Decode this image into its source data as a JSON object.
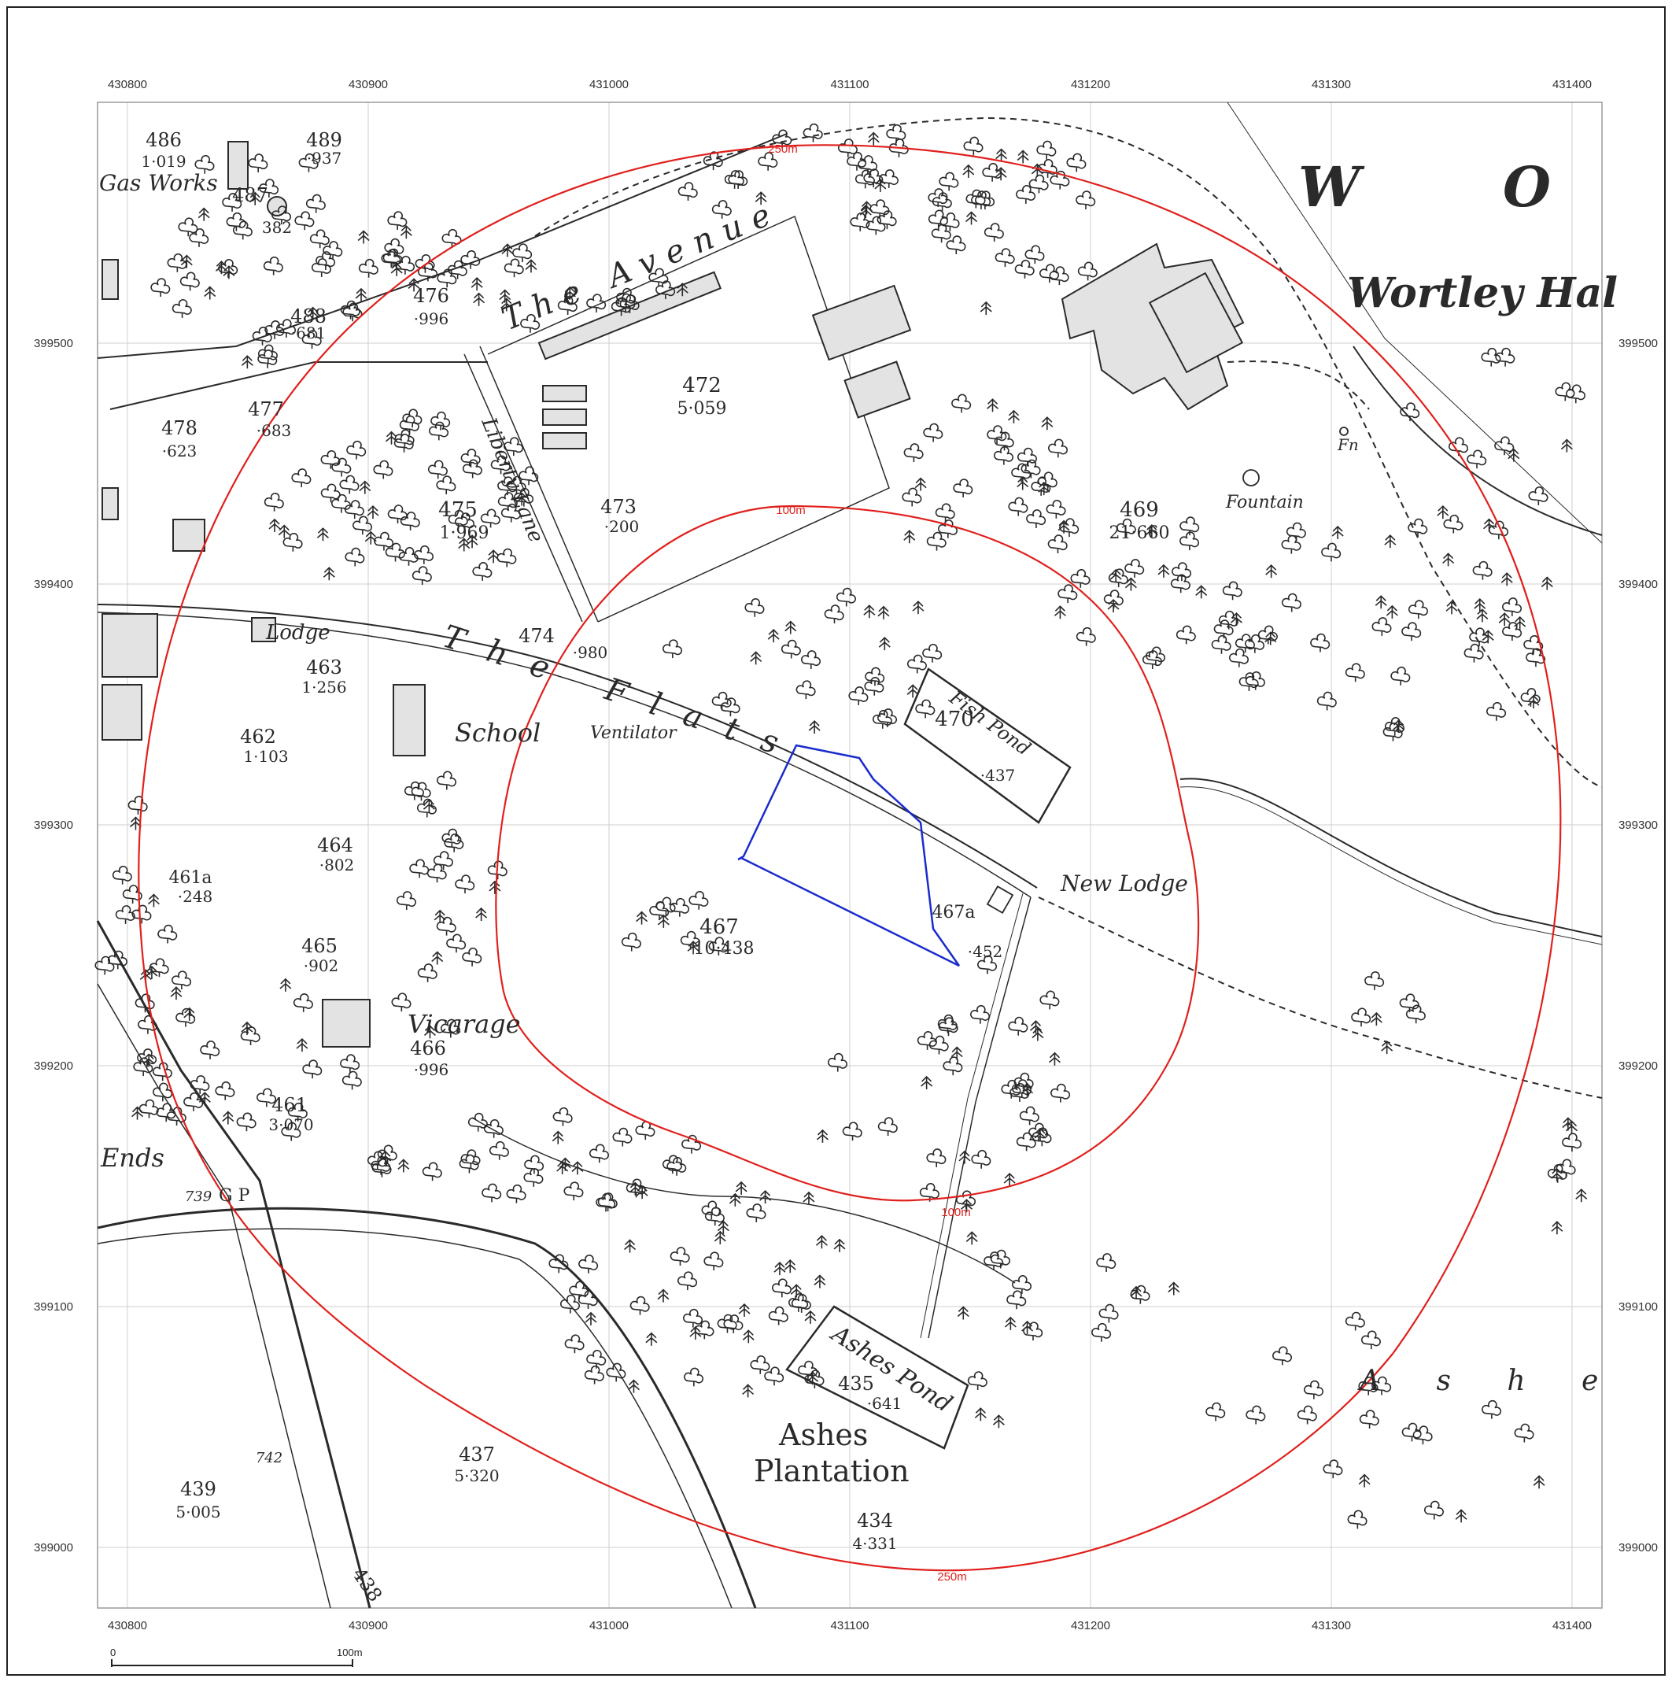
{
  "grid": {
    "x_labels": [
      "430800",
      "430900",
      "431000",
      "431100",
      "431200",
      "431300",
      "431400"
    ],
    "y_labels": [
      "399500",
      "399400",
      "399300",
      "399200",
      "399100",
      "399000"
    ]
  },
  "scale_bar": {
    "start": "0",
    "end": "100m"
  },
  "buffers": {
    "inner": "100m",
    "outer": "250m"
  },
  "colors": {
    "buffer": "#e0201c",
    "site": "#1a2ccc",
    "grid": "#cfcfcf",
    "ink": "#2a2a2a"
  },
  "places": {
    "gas_works": "Gas Works",
    "wortley_w": "W",
    "wortley_o": "O",
    "wortley_hall": "Wortley Hal",
    "the_avenue": "The Avenue",
    "liberty_lane": "Liberty Lane",
    "the_flats": "The Flats",
    "lodge": "Lodge",
    "school": "School",
    "ventilator": "Ventilator",
    "fish_pond": "Fish Pond",
    "fountain": "Fountain",
    "fn": "Fn",
    "new_lodge": "New Lodge",
    "vicarage": "Vicarage",
    "ends": "Ends",
    "gp": "G P",
    "ashes_pond": "Ashes Pond",
    "ashes_plantation_1": "Ashes",
    "ashes_plantation_2": "Plantation",
    "ashes_spaced": "A  s  h  e"
  },
  "parcels": [
    {
      "num": "486",
      "area": "1·019"
    },
    {
      "num": "489",
      "area": "·937"
    },
    {
      "num": "487",
      "area": ""
    },
    {
      "num": "382",
      "area": ""
    },
    {
      "num": "476",
      "area": "·996"
    },
    {
      "num": "488",
      "area": "·681"
    },
    {
      "num": "478",
      "area": "·623"
    },
    {
      "num": "477",
      "area": "·683"
    },
    {
      "num": "472",
      "area": "5·059"
    },
    {
      "num": "475",
      "area": "1·969"
    },
    {
      "num": "473",
      "area": "·200"
    },
    {
      "num": "469",
      "area": "21·660"
    },
    {
      "num": "474",
      "area": "·980"
    },
    {
      "num": "463",
      "area": "1·256"
    },
    {
      "num": "470",
      "area": "·437"
    },
    {
      "num": "462",
      "area": "1·103"
    },
    {
      "num": "464",
      "area": "·802"
    },
    {
      "num": "461a",
      "area": "·248"
    },
    {
      "num": "467",
      "area": "10·438"
    },
    {
      "num": "467a",
      "area": "·452"
    },
    {
      "num": "465",
      "area": "·902"
    },
    {
      "num": "466",
      "area": "·996"
    },
    {
      "num": "461",
      "area": "3·070"
    },
    {
      "num": "435",
      "area": "·641"
    },
    {
      "num": "437",
      "area": "5·320"
    },
    {
      "num": "439",
      "area": "5·005"
    },
    {
      "num": "434",
      "area": "4·331"
    },
    {
      "num": "739",
      "area": ""
    },
    {
      "num": "742",
      "area": ""
    },
    {
      "num": "438",
      "area": ""
    }
  ]
}
